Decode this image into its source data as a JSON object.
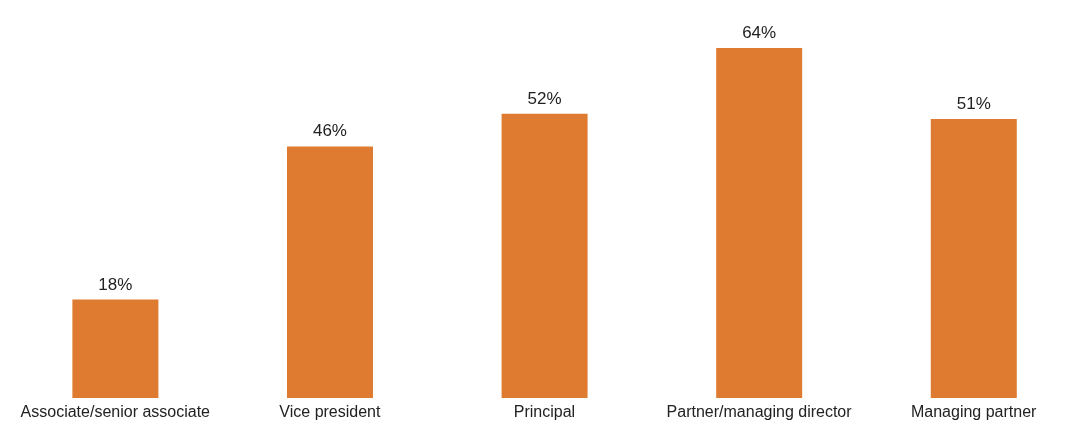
{
  "chart_data": {
    "type": "bar",
    "categories": [
      "Associate/senior associate",
      "Vice president",
      "Principal",
      "Partner/managing director",
      "Managing partner"
    ],
    "values": [
      18,
      46,
      52,
      64,
      51
    ],
    "value_labels": [
      "18%",
      "46%",
      "52%",
      "64%",
      "51%"
    ],
    "color": "#de7b30"
  }
}
